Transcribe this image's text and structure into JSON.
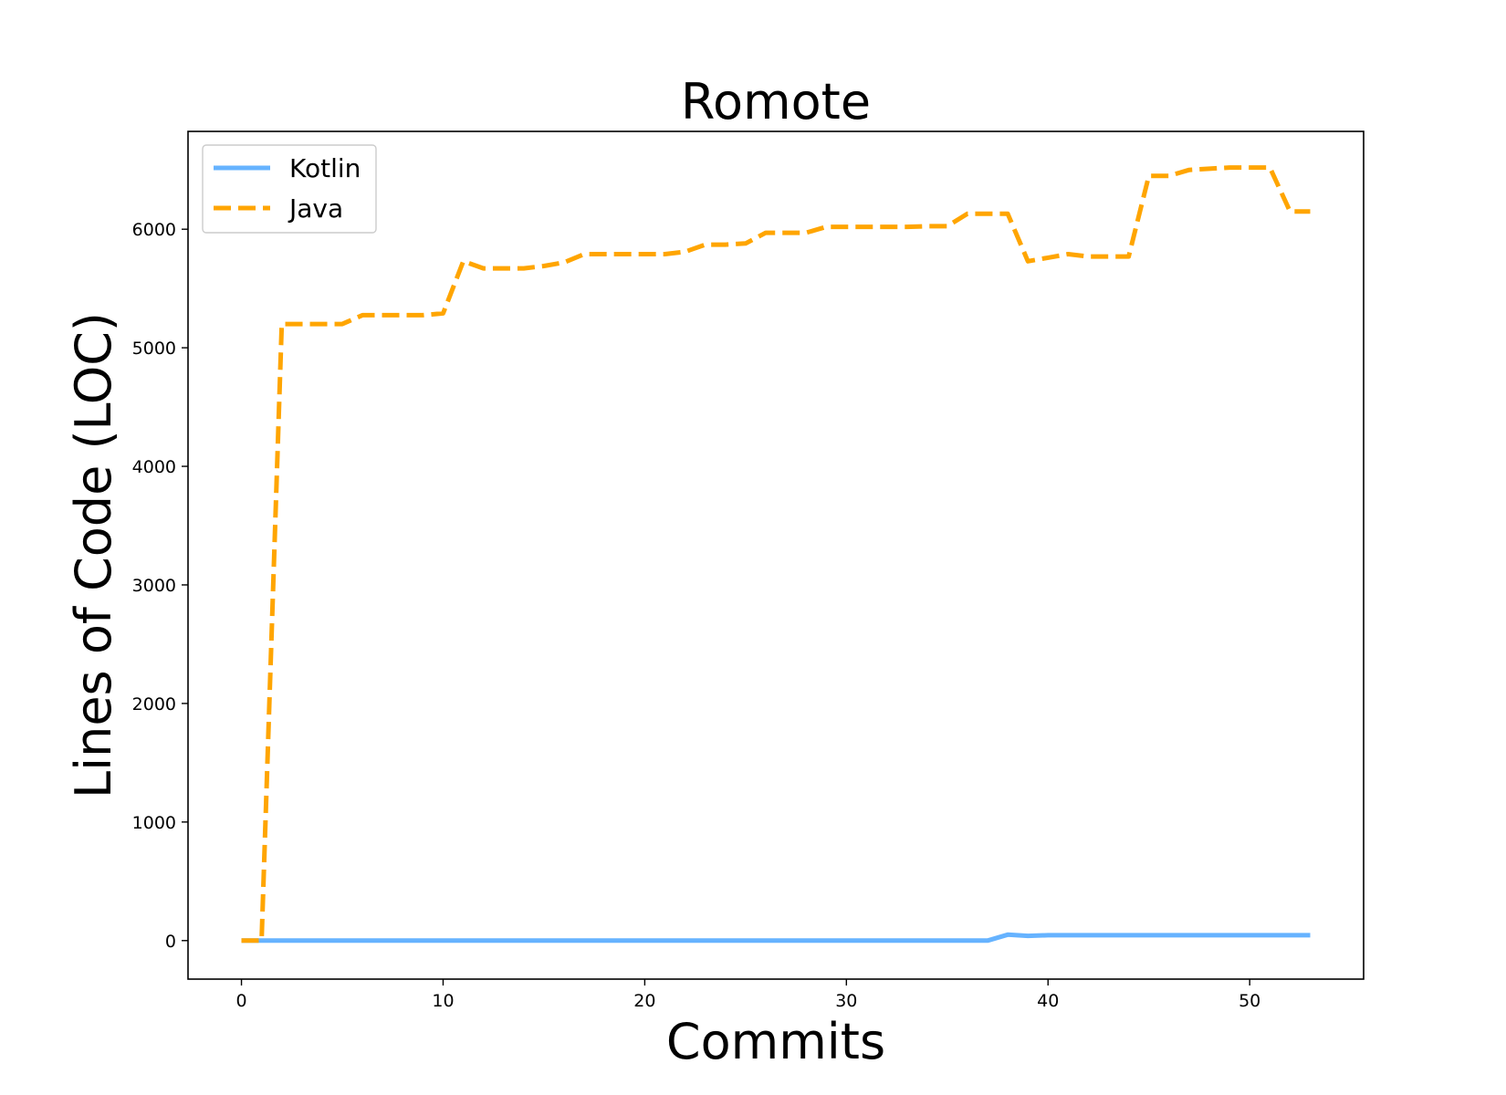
{
  "chart_data": {
    "type": "line",
    "title": "Romote",
    "xlabel": "Commits",
    "ylabel": "Lines of Code (LOC)",
    "xlim": [
      -2.65,
      55.65
    ],
    "ylim": [
      -325,
      6825
    ],
    "xticks": [
      0,
      10,
      20,
      30,
      40,
      50
    ],
    "yticks": [
      0,
      1000,
      2000,
      3000,
      4000,
      5000,
      6000
    ],
    "grid": false,
    "legend_position": "top-left",
    "series": [
      {
        "name": "Kotlin",
        "color": "#66b3ff",
        "style": "solid",
        "x": [
          0,
          1,
          2,
          3,
          4,
          5,
          6,
          7,
          8,
          9,
          10,
          11,
          12,
          13,
          14,
          15,
          16,
          17,
          18,
          19,
          20,
          21,
          22,
          23,
          24,
          25,
          26,
          27,
          28,
          29,
          30,
          31,
          32,
          33,
          34,
          35,
          36,
          37,
          38,
          39,
          40,
          41,
          42,
          43,
          44,
          45,
          46,
          47,
          48,
          49,
          50,
          51,
          52,
          53
        ],
        "values": [
          0,
          0,
          0,
          0,
          0,
          0,
          0,
          0,
          0,
          0,
          0,
          0,
          0,
          0,
          0,
          0,
          0,
          0,
          0,
          0,
          0,
          0,
          0,
          0,
          0,
          0,
          0,
          0,
          0,
          0,
          0,
          0,
          0,
          0,
          0,
          0,
          0,
          0,
          50,
          40,
          45,
          45,
          45,
          45,
          45,
          45,
          45,
          45,
          45,
          45,
          45,
          45,
          45,
          45
        ]
      },
      {
        "name": "Java",
        "color": "#ffa500",
        "style": "dashed",
        "x": [
          0,
          1,
          2,
          3,
          4,
          5,
          6,
          7,
          8,
          9,
          10,
          11,
          12,
          13,
          14,
          15,
          16,
          17,
          18,
          19,
          20,
          21,
          22,
          23,
          24,
          25,
          26,
          27,
          28,
          29,
          30,
          31,
          32,
          33,
          34,
          35,
          36,
          37,
          38,
          39,
          40,
          41,
          42,
          43,
          44,
          45,
          46,
          47,
          48,
          49,
          50,
          51,
          52,
          53
        ],
        "values": [
          0,
          0,
          5200,
          5200,
          5200,
          5200,
          5275,
          5275,
          5275,
          5275,
          5290,
          5730,
          5670,
          5670,
          5670,
          5690,
          5720,
          5790,
          5790,
          5790,
          5790,
          5790,
          5810,
          5870,
          5870,
          5880,
          5970,
          5970,
          5970,
          6020,
          6020,
          6020,
          6020,
          6020,
          6025,
          6025,
          6130,
          6130,
          6130,
          5730,
          5760,
          5790,
          5770,
          5770,
          5770,
          6450,
          6450,
          6500,
          6510,
          6520,
          6520,
          6520,
          6150,
          6150
        ]
      }
    ]
  }
}
